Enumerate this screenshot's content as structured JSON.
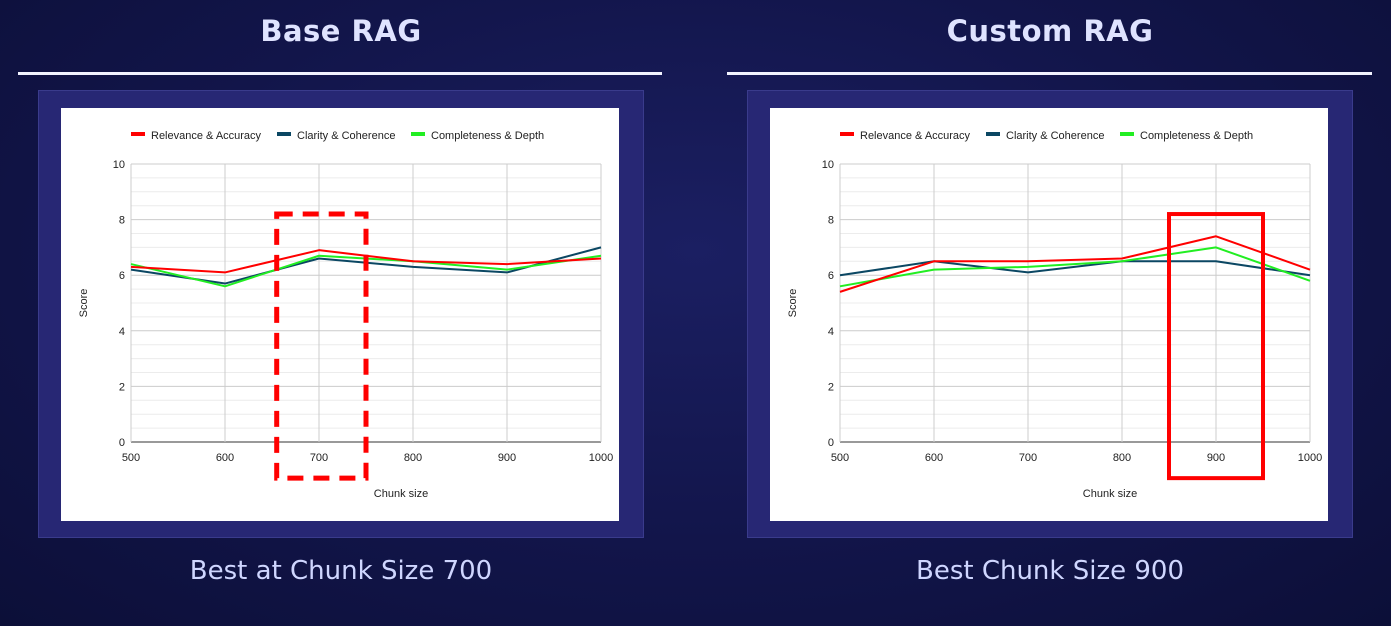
{
  "panels": [
    {
      "title": "Base RAG",
      "caption": "Best at Chunk Size 700",
      "highlight": {
        "x_from": 655,
        "x_to": 750,
        "y_from": -1.3,
        "y_to": 8.2,
        "style": "dashed",
        "color": "#ff0000"
      }
    },
    {
      "title": "Custom RAG",
      "caption": "Best Chunk Size 900",
      "highlight": {
        "x_from": 850,
        "x_to": 950,
        "y_from": -1.3,
        "y_to": 8.2,
        "style": "solid",
        "color": "#ff0000"
      }
    }
  ],
  "chart_data": [
    {
      "type": "line",
      "title": "",
      "xlabel": "Chunk size",
      "ylabel": "Score",
      "x": [
        500,
        600,
        700,
        800,
        900,
        1000
      ],
      "xlim": [
        500,
        1000
      ],
      "ylim": [
        0,
        10
      ],
      "yticks": [
        0,
        2,
        4,
        6,
        8,
        10
      ],
      "grid": true,
      "legend": "top",
      "series": [
        {
          "name": "Relevance & Accuracy",
          "color": "#ff0000",
          "values": [
            6.3,
            6.1,
            6.9,
            6.5,
            6.4,
            6.6
          ]
        },
        {
          "name": "Clarity & Coherence",
          "color": "#0b4763",
          "values": [
            6.2,
            5.7,
            6.6,
            6.3,
            6.1,
            7.0
          ]
        },
        {
          "name": "Completeness & Depth",
          "color": "#22ee22",
          "values": [
            6.4,
            5.6,
            6.7,
            6.5,
            6.2,
            6.7
          ]
        }
      ]
    },
    {
      "type": "line",
      "title": "",
      "xlabel": "Chunk size",
      "ylabel": "Score",
      "x": [
        500,
        600,
        700,
        800,
        900,
        1000
      ],
      "xlim": [
        500,
        1000
      ],
      "ylim": [
        0,
        10
      ],
      "yticks": [
        0,
        2,
        4,
        6,
        8,
        10
      ],
      "grid": true,
      "legend": "top",
      "series": [
        {
          "name": "Relevance & Accuracy",
          "color": "#ff0000",
          "values": [
            5.4,
            6.5,
            6.5,
            6.6,
            7.4,
            6.2
          ]
        },
        {
          "name": "Clarity & Coherence",
          "color": "#0b4763",
          "values": [
            6.0,
            6.5,
            6.1,
            6.5,
            6.5,
            6.0
          ]
        },
        {
          "name": "Completeness & Depth",
          "color": "#22ee22",
          "values": [
            5.6,
            6.2,
            6.3,
            6.5,
            7.0,
            5.8
          ]
        }
      ]
    }
  ]
}
